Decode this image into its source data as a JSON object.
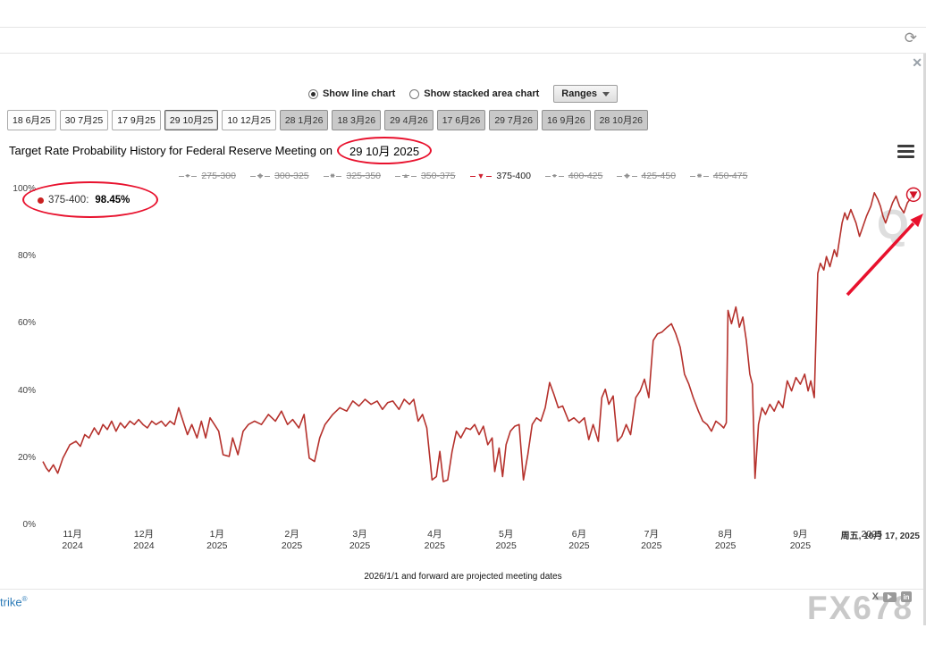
{
  "toolbar": {
    "refresh_icon": "⟳",
    "close_icon": "✕"
  },
  "controls": {
    "line_chart_label": "Show line chart",
    "stacked_area_label": "Show stacked area chart",
    "ranges_label": "Ranges",
    "selected_chart_type": "line"
  },
  "meeting_tabs": [
    {
      "label": "18 6月25",
      "theme": "light",
      "active": false
    },
    {
      "label": "30 7月25",
      "theme": "light",
      "active": false
    },
    {
      "label": "17 9月25",
      "theme": "light",
      "active": false
    },
    {
      "label": "29 10月25",
      "theme": "light",
      "active": true
    },
    {
      "label": "10 12月25",
      "theme": "light",
      "active": false
    },
    {
      "label": "28 1月26",
      "theme": "dark",
      "active": false
    },
    {
      "label": "18 3月26",
      "theme": "dark",
      "active": false
    },
    {
      "label": "29 4月26",
      "theme": "dark",
      "active": false
    },
    {
      "label": "17 6月26",
      "theme": "dark",
      "active": false
    },
    {
      "label": "29 7月26",
      "theme": "dark",
      "active": false
    },
    {
      "label": "16 9月26",
      "theme": "dark",
      "active": false
    },
    {
      "label": "28 10月26",
      "theme": "dark",
      "active": false
    }
  ],
  "chart": {
    "title_prefix": "Target Rate Probability History for Federal Reserve Meeting on",
    "title_circled": "29 10月 2025",
    "legend": [
      {
        "label": "275-300",
        "glyph": "●",
        "active": false
      },
      {
        "label": "300-325",
        "glyph": "◆",
        "active": false
      },
      {
        "label": "325-350",
        "glyph": "■",
        "active": false
      },
      {
        "label": "350-375",
        "glyph": "▲",
        "active": false
      },
      {
        "label": "375-400",
        "glyph": "▼",
        "active": true
      },
      {
        "label": "400-425",
        "glyph": "●",
        "active": false
      },
      {
        "label": "425-450",
        "glyph": "◆",
        "active": false
      },
      {
        "label": "450-475",
        "glyph": "■",
        "active": false
      }
    ],
    "tooltip": {
      "series_label": "375-400:",
      "value": "98.45%"
    },
    "watermark_letter": "Q",
    "current_date_label": "周五, 10月 17, 2025",
    "footnote": "2026/1/1 and forward are projected meeting dates"
  },
  "chart_data": {
    "type": "line",
    "title": "Target Rate Probability History for Federal Reserve Meeting on 29 10月 2025",
    "ylim": [
      0,
      100
    ],
    "grid": false,
    "legend_position": "top",
    "hidden_series": [
      "275-300",
      "300-325",
      "325-350",
      "350-375",
      "400-425",
      "425-450",
      "450-475"
    ],
    "y_ticks": [
      {
        "label": "100%",
        "value": 100
      },
      {
        "label": "80%",
        "value": 80
      },
      {
        "label": "60%",
        "value": 60
      },
      {
        "label": "40%",
        "value": 40
      },
      {
        "label": "20%",
        "value": 20
      },
      {
        "label": "0%",
        "value": 0
      }
    ],
    "x_ticks": [
      {
        "month": "11月",
        "year": "2024",
        "pos": 0.034
      },
      {
        "month": "12月",
        "year": "2024",
        "pos": 0.116
      },
      {
        "month": "1月",
        "year": "2025",
        "pos": 0.2
      },
      {
        "month": "2月",
        "year": "2025",
        "pos": 0.286
      },
      {
        "month": "3月",
        "year": "2025",
        "pos": 0.364
      },
      {
        "month": "4月",
        "year": "2025",
        "pos": 0.45
      },
      {
        "month": "5月",
        "year": "2025",
        "pos": 0.532
      },
      {
        "month": "6月",
        "year": "2025",
        "pos": 0.616
      },
      {
        "month": "7月",
        "year": "2025",
        "pos": 0.699
      },
      {
        "month": "8月",
        "year": "2025",
        "pos": 0.784
      },
      {
        "month": "9月",
        "year": "2025",
        "pos": 0.87
      },
      {
        "month": "",
        "year": "2025",
        "pos": 0.952
      }
    ],
    "series": [
      {
        "name": "375-400",
        "color": "#b5312c",
        "last_value": 98.45,
        "points": [
          [
            0,
            19
          ],
          [
            0.004,
            17
          ],
          [
            0.007,
            16
          ],
          [
            0.012,
            18
          ],
          [
            0.017,
            15.5
          ],
          [
            0.023,
            20
          ],
          [
            0.031,
            24
          ],
          [
            0.038,
            25
          ],
          [
            0.043,
            23.5
          ],
          [
            0.048,
            27
          ],
          [
            0.053,
            26
          ],
          [
            0.059,
            29
          ],
          [
            0.064,
            27
          ],
          [
            0.069,
            30
          ],
          [
            0.074,
            28.5
          ],
          [
            0.079,
            31
          ],
          [
            0.084,
            28
          ],
          [
            0.089,
            30.5
          ],
          [
            0.094,
            29
          ],
          [
            0.1,
            31
          ],
          [
            0.105,
            30
          ],
          [
            0.11,
            31.5
          ],
          [
            0.115,
            30
          ],
          [
            0.12,
            29
          ],
          [
            0.125,
            31
          ],
          [
            0.13,
            30
          ],
          [
            0.136,
            31
          ],
          [
            0.141,
            29.5
          ],
          [
            0.146,
            31
          ],
          [
            0.151,
            30
          ],
          [
            0.156,
            35
          ],
          [
            0.161,
            31
          ],
          [
            0.166,
            27
          ],
          [
            0.171,
            30
          ],
          [
            0.177,
            26
          ],
          [
            0.182,
            31
          ],
          [
            0.187,
            26
          ],
          [
            0.192,
            32
          ],
          [
            0.197,
            30
          ],
          [
            0.202,
            28
          ],
          [
            0.207,
            21
          ],
          [
            0.214,
            20.5
          ],
          [
            0.218,
            26
          ],
          [
            0.224,
            21
          ],
          [
            0.23,
            28
          ],
          [
            0.236,
            30
          ],
          [
            0.243,
            31
          ],
          [
            0.251,
            30
          ],
          [
            0.259,
            33
          ],
          [
            0.267,
            31
          ],
          [
            0.274,
            34
          ],
          [
            0.281,
            30
          ],
          [
            0.287,
            31.5
          ],
          [
            0.294,
            29
          ],
          [
            0.3,
            33
          ],
          [
            0.306,
            20
          ],
          [
            0.312,
            19
          ],
          [
            0.318,
            26
          ],
          [
            0.324,
            30
          ],
          [
            0.333,
            33
          ],
          [
            0.341,
            35
          ],
          [
            0.349,
            34
          ],
          [
            0.356,
            37
          ],
          [
            0.363,
            35.5
          ],
          [
            0.37,
            37.5
          ],
          [
            0.377,
            36
          ],
          [
            0.384,
            37
          ],
          [
            0.39,
            34.5
          ],
          [
            0.396,
            36.5
          ],
          [
            0.402,
            37
          ],
          [
            0.409,
            34.5
          ],
          [
            0.415,
            37.5
          ],
          [
            0.421,
            36
          ],
          [
            0.426,
            37.5
          ],
          [
            0.431,
            31
          ],
          [
            0.436,
            33
          ],
          [
            0.441,
            29
          ],
          [
            0.447,
            13.5
          ],
          [
            0.452,
            14.5
          ],
          [
            0.456,
            22
          ],
          [
            0.46,
            13
          ],
          [
            0.465,
            13.5
          ],
          [
            0.47,
            22
          ],
          [
            0.475,
            28
          ],
          [
            0.48,
            26
          ],
          [
            0.486,
            29
          ],
          [
            0.491,
            28.5
          ],
          [
            0.496,
            30
          ],
          [
            0.501,
            27
          ],
          [
            0.506,
            29.5
          ],
          [
            0.511,
            24
          ],
          [
            0.516,
            26
          ],
          [
            0.519,
            16
          ],
          [
            0.524,
            23
          ],
          [
            0.528,
            14.5
          ],
          [
            0.532,
            24
          ],
          [
            0.537,
            28
          ],
          [
            0.542,
            29.5
          ],
          [
            0.547,
            30
          ],
          [
            0.552,
            13.5
          ],
          [
            0.557,
            21
          ],
          [
            0.562,
            30
          ],
          [
            0.567,
            32
          ],
          [
            0.572,
            31
          ],
          [
            0.577,
            35
          ],
          [
            0.582,
            42.5
          ],
          [
            0.587,
            39
          ],
          [
            0.592,
            35
          ],
          [
            0.597,
            35.5
          ],
          [
            0.604,
            31
          ],
          [
            0.61,
            32
          ],
          [
            0.616,
            30.5
          ],
          [
            0.622,
            32
          ],
          [
            0.627,
            25.5
          ],
          [
            0.632,
            30
          ],
          [
            0.638,
            25
          ],
          [
            0.642,
            38
          ],
          [
            0.646,
            40.5
          ],
          [
            0.65,
            36
          ],
          [
            0.655,
            38.5
          ],
          [
            0.66,
            25
          ],
          [
            0.665,
            26.5
          ],
          [
            0.67,
            30
          ],
          [
            0.675,
            27
          ],
          [
            0.681,
            38
          ],
          [
            0.686,
            40
          ],
          [
            0.691,
            43.5
          ],
          [
            0.696,
            38
          ],
          [
            0.701,
            55
          ],
          [
            0.706,
            57
          ],
          [
            0.711,
            57.5
          ],
          [
            0.717,
            59
          ],
          [
            0.722,
            60
          ],
          [
            0.727,
            57
          ],
          [
            0.732,
            53
          ],
          [
            0.737,
            45
          ],
          [
            0.742,
            42
          ],
          [
            0.747,
            38
          ],
          [
            0.753,
            34
          ],
          [
            0.758,
            31
          ],
          [
            0.763,
            30
          ],
          [
            0.768,
            28
          ],
          [
            0.773,
            31
          ],
          [
            0.778,
            30
          ],
          [
            0.782,
            29
          ],
          [
            0.785,
            30.5
          ],
          [
            0.787,
            64
          ],
          [
            0.791,
            60
          ],
          [
            0.796,
            65
          ],
          [
            0.8,
            59
          ],
          [
            0.804,
            62
          ],
          [
            0.808,
            55
          ],
          [
            0.812,
            45
          ],
          [
            0.815,
            42
          ],
          [
            0.818,
            14
          ],
          [
            0.822,
            30
          ],
          [
            0.826,
            35
          ],
          [
            0.83,
            33
          ],
          [
            0.835,
            36
          ],
          [
            0.84,
            34
          ],
          [
            0.845,
            37
          ],
          [
            0.85,
            35
          ],
          [
            0.855,
            43
          ],
          [
            0.86,
            40
          ],
          [
            0.865,
            44
          ],
          [
            0.87,
            42
          ],
          [
            0.875,
            45
          ],
          [
            0.879,
            40
          ],
          [
            0.882,
            43
          ],
          [
            0.886,
            38
          ],
          [
            0.89,
            75
          ],
          [
            0.893,
            78
          ],
          [
            0.897,
            76
          ],
          [
            0.9,
            80
          ],
          [
            0.904,
            77
          ],
          [
            0.909,
            82
          ],
          [
            0.912,
            80
          ],
          [
            0.915,
            85
          ],
          [
            0.918,
            90
          ],
          [
            0.921,
            93
          ],
          [
            0.924,
            91
          ],
          [
            0.928,
            94
          ],
          [
            0.931,
            92
          ],
          [
            0.934,
            90
          ],
          [
            0.938,
            86
          ],
          [
            0.942,
            89
          ],
          [
            0.946,
            92
          ],
          [
            0.951,
            95
          ],
          [
            0.955,
            99
          ],
          [
            0.959,
            97
          ],
          [
            0.962,
            95
          ],
          [
            0.965,
            92
          ],
          [
            0.968,
            90
          ],
          [
            0.972,
            93
          ],
          [
            0.976,
            96
          ],
          [
            0.98,
            98
          ],
          [
            0.984,
            95
          ],
          [
            0.989,
            93
          ],
          [
            0.993,
            96
          ],
          [
            1,
            98.45
          ]
        ]
      }
    ]
  },
  "annotations": {
    "circled_title_date": "29 10月 2025",
    "circled_value": "375-400: 98.45%",
    "trend_arrow": "up-right"
  },
  "footer": {
    "brand_partial": "trike",
    "brand_reg": "®",
    "x_glyph": "X",
    "linkedin_glyph": "in",
    "site_watermark": "FX678"
  }
}
